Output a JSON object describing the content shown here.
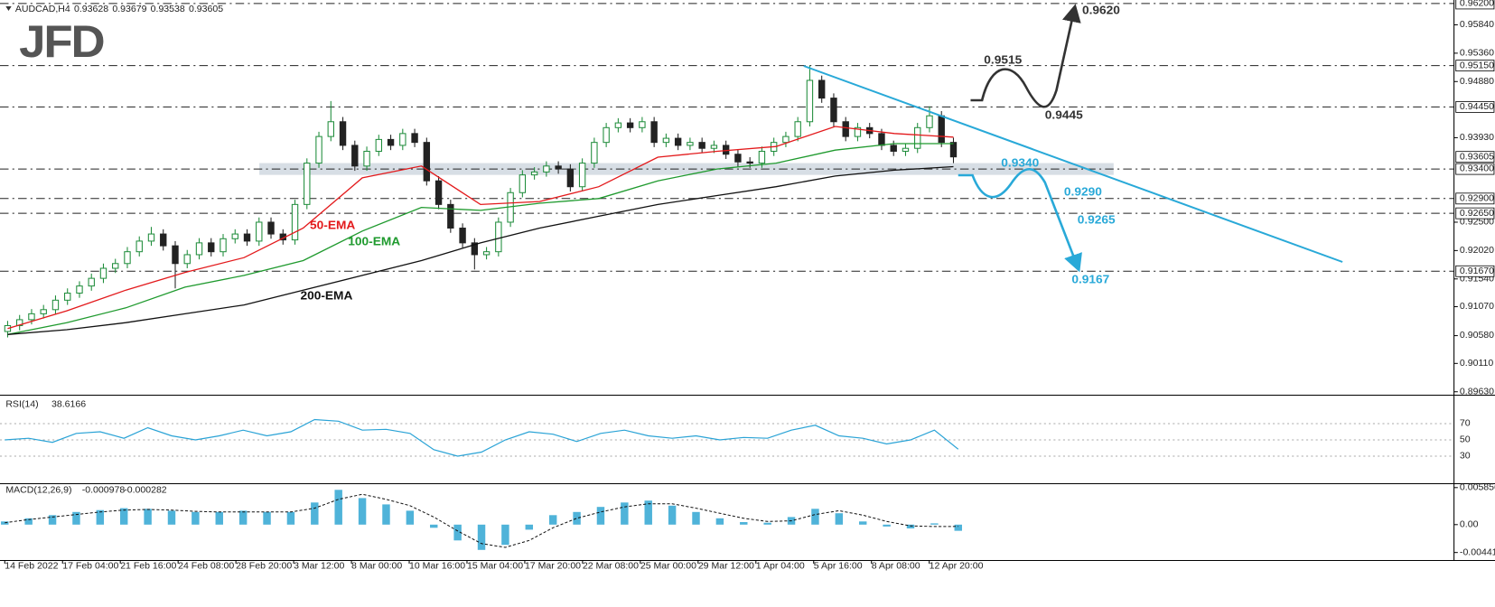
{
  "header": {
    "symbol": "AUDCAD,H4",
    "ohlc": [
      0.93628,
      0.93679,
      0.93538,
      0.93605
    ]
  },
  "logo": "JFD",
  "time_axis": [
    "14 Feb 2022",
    "17 Feb 04:00",
    "21 Feb 16:00",
    "24 Feb 08:00",
    "28 Feb 20:00",
    "3 Mar 12:00",
    "8 Mar 00:00",
    "10 Mar 16:00",
    "15 Mar 04:00",
    "17 Mar 20:00",
    "22 Mar 08:00",
    "25 Mar 00:00",
    "29 Mar 12:00",
    "1 Apr 04:00",
    "5 Apr 16:00",
    "8 Apr 08:00",
    "12 Apr 20:00"
  ],
  "chart_data": [
    {
      "type": "candlestick",
      "up_color": "#1e8c3a",
      "down_color": "#222222",
      "open": [
        0.9065,
        0.9075,
        0.9085,
        0.9095,
        0.9102,
        0.9118,
        0.913,
        0.9142,
        0.9155,
        0.9172,
        0.918,
        0.92,
        0.9218,
        0.923,
        0.921,
        0.918,
        0.9195,
        0.9215,
        0.92,
        0.9222,
        0.923,
        0.9218,
        0.925,
        0.923,
        0.922,
        0.928,
        0.935,
        0.9395,
        0.942,
        0.938,
        0.9345,
        0.937,
        0.939,
        0.938,
        0.94,
        0.9385,
        0.932,
        0.928,
        0.924,
        0.9215,
        0.9195,
        0.92,
        0.925,
        0.93,
        0.933,
        0.9335,
        0.9345,
        0.934,
        0.931,
        0.935,
        0.9385,
        0.941,
        0.9418,
        0.941,
        0.942,
        0.9385,
        0.9392,
        0.938,
        0.9385,
        0.9375,
        0.938,
        0.9365,
        0.9352,
        0.935,
        0.937,
        0.9385,
        0.9395,
        0.942,
        0.949,
        0.946,
        0.942,
        0.9395,
        0.941,
        0.94,
        0.938,
        0.937,
        0.9375,
        0.941,
        0.943,
        0.9385
      ],
      "high": [
        0.9083,
        0.9093,
        0.9103,
        0.911,
        0.9126,
        0.9138,
        0.915,
        0.9163,
        0.918,
        0.9188,
        0.9208,
        0.9226,
        0.9242,
        0.9238,
        0.9218,
        0.9203,
        0.9223,
        0.9223,
        0.923,
        0.9238,
        0.9238,
        0.9258,
        0.9258,
        0.9238,
        0.9288,
        0.9358,
        0.9403,
        0.9455,
        0.9428,
        0.9388,
        0.9378,
        0.9398,
        0.9398,
        0.9408,
        0.9408,
        0.9393,
        0.9328,
        0.9288,
        0.9248,
        0.9223,
        0.9208,
        0.9258,
        0.9308,
        0.9338,
        0.9343,
        0.9353,
        0.9353,
        0.9348,
        0.9358,
        0.9393,
        0.9418,
        0.9426,
        0.9426,
        0.9428,
        0.9428,
        0.94,
        0.94,
        0.9393,
        0.9393,
        0.9388,
        0.9388,
        0.9373,
        0.936,
        0.9378,
        0.9393,
        0.9403,
        0.9428,
        0.9515,
        0.9498,
        0.9468,
        0.9428,
        0.9418,
        0.9418,
        0.9408,
        0.9388,
        0.9383,
        0.9418,
        0.9446,
        0.9438,
        0.9393
      ],
      "low": [
        0.9055,
        0.9067,
        0.9077,
        0.9087,
        0.9094,
        0.911,
        0.9122,
        0.9134,
        0.9147,
        0.9164,
        0.9172,
        0.9192,
        0.921,
        0.9202,
        0.9138,
        0.9172,
        0.9187,
        0.9192,
        0.9192,
        0.9214,
        0.921,
        0.921,
        0.9222,
        0.9212,
        0.9212,
        0.9272,
        0.9342,
        0.9387,
        0.9372,
        0.9337,
        0.9337,
        0.9362,
        0.9372,
        0.9372,
        0.9377,
        0.9312,
        0.9272,
        0.9232,
        0.9207,
        0.917,
        0.9187,
        0.9192,
        0.9242,
        0.9292,
        0.9322,
        0.9327,
        0.9332,
        0.9302,
        0.9302,
        0.9342,
        0.9377,
        0.9402,
        0.9402,
        0.9402,
        0.9377,
        0.9377,
        0.9372,
        0.9372,
        0.9367,
        0.9367,
        0.9357,
        0.9344,
        0.9342,
        0.9342,
        0.9362,
        0.9377,
        0.9387,
        0.9412,
        0.9452,
        0.9412,
        0.9387,
        0.9387,
        0.9392,
        0.9372,
        0.9362,
        0.9362,
        0.9367,
        0.9402,
        0.9377,
        0.935
      ],
      "close": [
        0.9075,
        0.9085,
        0.9095,
        0.9102,
        0.9118,
        0.913,
        0.9142,
        0.9155,
        0.9172,
        0.918,
        0.92,
        0.9218,
        0.923,
        0.921,
        0.918,
        0.9195,
        0.9215,
        0.92,
        0.9222,
        0.923,
        0.9218,
        0.925,
        0.923,
        0.922,
        0.928,
        0.935,
        0.9395,
        0.942,
        0.938,
        0.9345,
        0.937,
        0.939,
        0.938,
        0.94,
        0.9385,
        0.932,
        0.928,
        0.924,
        0.9215,
        0.9195,
        0.92,
        0.925,
        0.93,
        0.933,
        0.9335,
        0.9345,
        0.934,
        0.931,
        0.935,
        0.9385,
        0.941,
        0.9418,
        0.941,
        0.942,
        0.9385,
        0.9392,
        0.938,
        0.9385,
        0.9375,
        0.938,
        0.9365,
        0.9352,
        0.935,
        0.937,
        0.9385,
        0.9395,
        0.942,
        0.949,
        0.946,
        0.942,
        0.9395,
        0.941,
        0.94,
        0.938,
        0.937,
        0.9375,
        0.941,
        0.943,
        0.9385,
        0.93605
      ],
      "series": [
        {
          "name": "50-EMA",
          "color": "#e31a1c",
          "values": [
            0.907,
            0.91,
            0.9135,
            0.9165,
            0.919,
            0.924,
            0.9325,
            0.9345,
            0.928,
            0.9285,
            0.931,
            0.936,
            0.937,
            0.9378,
            0.9412,
            0.94,
            0.9394
          ]
        },
        {
          "name": "100-EMA",
          "color": "#1f9a2e",
          "values": [
            0.906,
            0.908,
            0.9105,
            0.914,
            0.916,
            0.9185,
            0.9235,
            0.9275,
            0.927,
            0.9282,
            0.929,
            0.932,
            0.934,
            0.935,
            0.9372,
            0.9383,
            0.9383
          ]
        },
        {
          "name": "200-EMA",
          "color": "#111111",
          "values": [
            0.906,
            0.9068,
            0.908,
            0.9095,
            0.911,
            0.9135,
            0.916,
            0.9185,
            0.9215,
            0.924,
            0.926,
            0.928,
            0.9295,
            0.931,
            0.9328,
            0.9338,
            0.9344
          ]
        }
      ],
      "ylim": [
        0.8958,
        0.9626
      ],
      "yticks": [
        {
          "value": 0.9584,
          "label": "0.95840"
        },
        {
          "value": 0.9536,
          "label": "0.95360"
        },
        {
          "value": 0.9488,
          "label": "0.94880"
        },
        {
          "value": 0.9393,
          "label": "0.93930"
        },
        {
          "value": 0.925,
          "label": "0.92500"
        },
        {
          "value": 0.9202,
          "label": "0.92020"
        },
        {
          "value": 0.9154,
          "label": "0.91540"
        },
        {
          "value": 0.9107,
          "label": "0.91070"
        },
        {
          "value": 0.9058,
          "label": "0.90580"
        },
        {
          "value": 0.9011,
          "label": "0.90110"
        },
        {
          "value": 0.8963,
          "label": "0.89630"
        }
      ],
      "levels": [
        {
          "value": 0.962,
          "label": "0.96200"
        },
        {
          "value": 0.9515,
          "label": "0.95150"
        },
        {
          "value": 0.9445,
          "label": "0.94450"
        },
        {
          "value": 0.934,
          "label": "0.93400"
        },
        {
          "value": 0.929,
          "label": "0.92900"
        },
        {
          "value": 0.9265,
          "label": "0.92650"
        },
        {
          "value": 0.9167,
          "label": "0.91670"
        }
      ],
      "last_price": {
        "value": 0.93605,
        "label": "0.93605"
      },
      "zone": [
        0.933,
        0.935
      ],
      "annotations": [
        {
          "value": 0.962,
          "label": "0.9620",
          "color": "#333333"
        },
        {
          "value": 0.9515,
          "label": "0.9515",
          "color": "#333333"
        },
        {
          "value": 0.9445,
          "label": "0.9445",
          "color": "#333333"
        },
        {
          "value": 0.934,
          "label": "0.9340",
          "color": "#29a9d8"
        },
        {
          "value": 0.929,
          "label": "0.9290",
          "color": "#29a9d8"
        },
        {
          "value": 0.9265,
          "label": "0.9265",
          "color": "#29a9d8"
        },
        {
          "value": 0.9167,
          "label": "0.9167",
          "color": "#29a9d8"
        }
      ]
    },
    {
      "type": "line",
      "title": "RSI(14)",
      "current": 38.6166,
      "color": "#2aa3d6",
      "values": [
        50,
        52,
        47,
        58,
        60,
        52,
        65,
        55,
        50,
        55,
        62,
        55,
        60,
        75,
        73,
        62,
        63,
        58,
        38,
        30,
        35,
        50,
        60,
        57,
        48,
        58,
        62,
        55,
        52,
        55,
        50,
        53,
        52,
        62,
        68,
        55,
        52,
        45,
        50,
        62,
        38.6
      ],
      "ylim": [
        0,
        100
      ],
      "yticks": [
        30,
        50,
        70
      ]
    },
    {
      "type": "macd",
      "title": "MACD(12,26,9)",
      "current": [
        -0.000978,
        -0.000282
      ],
      "color": "#4fb3d9",
      "signal_color": "#111111",
      "histogram": [
        0.0005,
        0.001,
        0.0015,
        0.002,
        0.0023,
        0.0026,
        0.0025,
        0.0022,
        0.002,
        0.002,
        0.0022,
        0.002,
        0.002,
        0.0035,
        0.0055,
        0.0042,
        0.0032,
        0.0022,
        -0.0005,
        -0.0025,
        -0.004,
        -0.0032,
        -0.0008,
        0.0015,
        0.002,
        0.0028,
        0.0035,
        0.0038,
        0.003,
        0.002,
        0.001,
        0.0004,
        0.0003,
        0.0012,
        0.0025,
        0.0018,
        0.0005,
        -0.0003,
        -0.0006,
        0.0002,
        -0.000978
      ],
      "signal": [
        0.0003,
        0.0008,
        0.0012,
        0.0016,
        0.002,
        0.0023,
        0.0024,
        0.0023,
        0.0021,
        0.002,
        0.002,
        0.002,
        0.002,
        0.0026,
        0.004,
        0.0048,
        0.004,
        0.003,
        0.0012,
        -0.001,
        -0.003,
        -0.0036,
        -0.0025,
        -0.0005,
        0.001,
        0.002,
        0.0028,
        0.0033,
        0.0033,
        0.0026,
        0.0018,
        0.001,
        0.0005,
        0.0006,
        0.0016,
        0.0022,
        0.0015,
        0.0005,
        -0.0002,
        -0.0003,
        -0.000282
      ],
      "ylim": [
        -0.0056,
        0.0064
      ],
      "yticks": [
        0.005856,
        {
          "value": 0,
          "label": "0.00"
        },
        -0.004411
      ]
    }
  ]
}
